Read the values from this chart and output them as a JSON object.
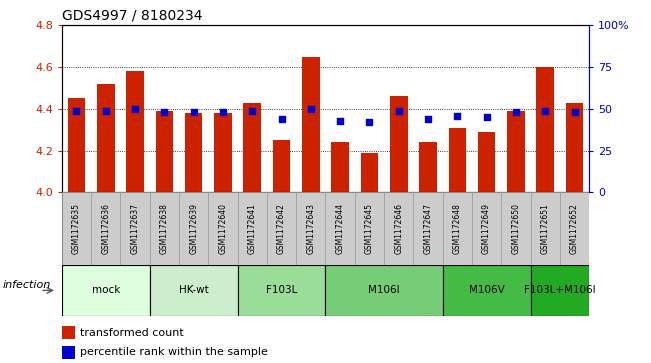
{
  "title": "GDS4997 / 8180234",
  "samples": [
    "GSM1172635",
    "GSM1172636",
    "GSM1172637",
    "GSM1172638",
    "GSM1172639",
    "GSM1172640",
    "GSM1172641",
    "GSM1172642",
    "GSM1172643",
    "GSM1172644",
    "GSM1172645",
    "GSM1172646",
    "GSM1172647",
    "GSM1172648",
    "GSM1172649",
    "GSM1172650",
    "GSM1172651",
    "GSM1172652"
  ],
  "bar_values": [
    4.45,
    4.52,
    4.58,
    4.39,
    4.38,
    4.38,
    4.43,
    4.25,
    4.65,
    4.24,
    4.19,
    4.46,
    4.24,
    4.31,
    4.29,
    4.39,
    4.6,
    4.43
  ],
  "percentile_values": [
    49,
    49,
    50,
    48,
    48,
    48,
    49,
    44,
    50,
    43,
    42,
    49,
    44,
    46,
    45,
    48,
    49,
    48
  ],
  "ylim_left": [
    4.0,
    4.8
  ],
  "ylim_right": [
    0,
    100
  ],
  "yticks_left": [
    4.0,
    4.2,
    4.4,
    4.6,
    4.8
  ],
  "yticks_right": [
    0,
    25,
    50,
    75,
    100
  ],
  "bar_color": "#cc2200",
  "dot_color": "#0000cc",
  "groups": [
    {
      "label": "mock",
      "start": 0,
      "end": 3,
      "color": "#ddffdd"
    },
    {
      "label": "HK-wt",
      "start": 3,
      "end": 6,
      "color": "#cceecc"
    },
    {
      "label": "F103L",
      "start": 6,
      "end": 9,
      "color": "#99dd99"
    },
    {
      "label": "M106I",
      "start": 9,
      "end": 13,
      "color": "#77cc77"
    },
    {
      "label": "M106V",
      "start": 13,
      "end": 16,
      "color": "#44bb44"
    },
    {
      "label": "F103L+M106I",
      "start": 16,
      "end": 18,
      "color": "#22aa22"
    }
  ],
  "infection_label": "infection",
  "legend_bar_label": "transformed count",
  "legend_dot_label": "percentile rank within the sample",
  "grid_color": "black",
  "title_fontsize": 10,
  "axis_label_color_left": "#cc2200",
  "axis_label_color_right": "#0000cc",
  "sample_box_color": "#cccccc",
  "sample_box_edge": "#999999"
}
